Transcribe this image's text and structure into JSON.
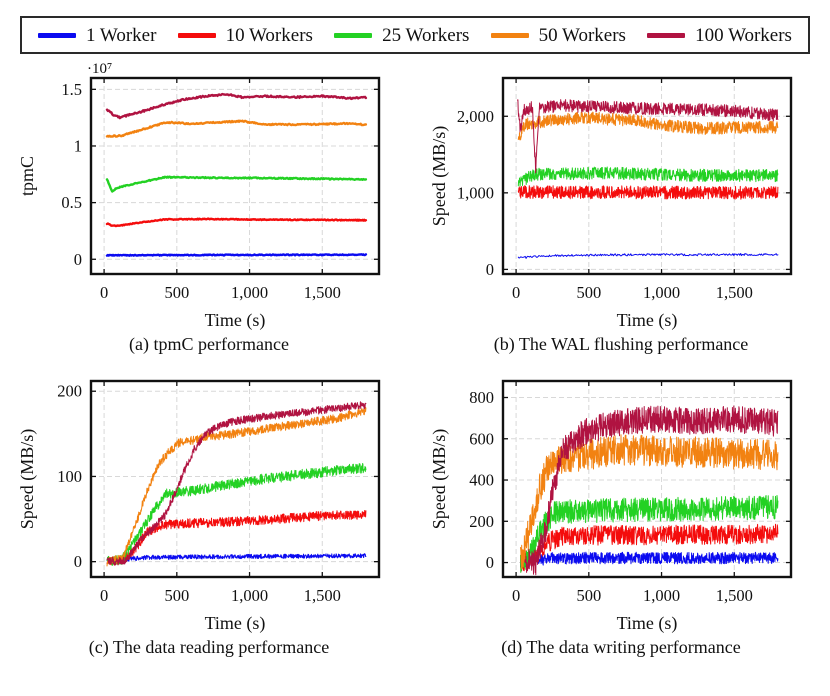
{
  "page": {
    "background": "#ffffff"
  },
  "legend": {
    "border_color": "#2a2a2a",
    "position": "top",
    "items": [
      {
        "label": "1 Worker",
        "color": "#0b0bf0"
      },
      {
        "label": "10 Workers",
        "color": "#f40c0c"
      },
      {
        "label": "25 Workers",
        "color": "#23d123"
      },
      {
        "label": "50 Workers",
        "color": "#f28211"
      },
      {
        "label": "100 Workers",
        "color": "#b01341"
      }
    ]
  },
  "style": {
    "grid_color": "#d8d8d8",
    "axis_color": "#111111",
    "tick_label_size": 16.5,
    "axis_label_size": 18
  },
  "chart_data": [
    {
      "id": "a",
      "type": "line",
      "caption": "(a) tpmC performance",
      "xlabel": "Time (s)",
      "ylabel": "tpmC",
      "y_scale_label": "·10⁷",
      "grid": true,
      "legend_position": "figure-top-shared",
      "xlim": [
        -90,
        1890
      ],
      "ylim": [
        -0.13,
        1.6
      ],
      "xticks": [
        0,
        500,
        1000,
        1500
      ],
      "xtick_labels": [
        "0",
        "500",
        "1,000",
        "1,500"
      ],
      "yticks": [
        0,
        0.5,
        1,
        1.5
      ],
      "ytick_labels": [
        "0",
        "0.5",
        "1",
        "1.5"
      ],
      "series": [
        {
          "name": "1 Worker",
          "color": "#0b0bf0",
          "width": 2.4,
          "noise": 0.004,
          "points": [
            [
              20,
              0.035
            ],
            [
              900,
              0.038
            ],
            [
              1800,
              0.04
            ]
          ]
        },
        {
          "name": "10 Workers",
          "color": "#f40c0c",
          "width": 2.4,
          "noise": 0.004,
          "points": [
            [
              20,
              0.315
            ],
            [
              60,
              0.295
            ],
            [
              120,
              0.3
            ],
            [
              250,
              0.325
            ],
            [
              420,
              0.352
            ],
            [
              700,
              0.355
            ],
            [
              1100,
              0.35
            ],
            [
              1800,
              0.345
            ]
          ]
        },
        {
          "name": "25 Workers",
          "color": "#23d123",
          "width": 2.4,
          "noise": 0.005,
          "points": [
            [
              20,
              0.705
            ],
            [
              55,
              0.6
            ],
            [
              90,
              0.63
            ],
            [
              200,
              0.665
            ],
            [
              420,
              0.725
            ],
            [
              700,
              0.72
            ],
            [
              1200,
              0.715
            ],
            [
              1800,
              0.705
            ]
          ]
        },
        {
          "name": "50 Workers",
          "color": "#f28211",
          "width": 2.4,
          "noise": 0.006,
          "points": [
            [
              20,
              1.085
            ],
            [
              120,
              1.09
            ],
            [
              300,
              1.16
            ],
            [
              430,
              1.21
            ],
            [
              600,
              1.195
            ],
            [
              800,
              1.21
            ],
            [
              950,
              1.22
            ],
            [
              1100,
              1.19
            ],
            [
              1400,
              1.19
            ],
            [
              1700,
              1.2
            ],
            [
              1800,
              1.185
            ]
          ]
        },
        {
          "name": "100 Workers",
          "color": "#b01341",
          "width": 2.4,
          "noise": 0.007,
          "points": [
            [
              20,
              1.32
            ],
            [
              70,
              1.27
            ],
            [
              110,
              1.25
            ],
            [
              160,
              1.27
            ],
            [
              250,
              1.3
            ],
            [
              400,
              1.36
            ],
            [
              550,
              1.41
            ],
            [
              700,
              1.44
            ],
            [
              850,
              1.455
            ],
            [
              950,
              1.43
            ],
            [
              1100,
              1.44
            ],
            [
              1300,
              1.43
            ],
            [
              1500,
              1.44
            ],
            [
              1700,
              1.42
            ],
            [
              1800,
              1.43
            ]
          ]
        }
      ]
    },
    {
      "id": "b",
      "type": "line",
      "caption": "(b) The WAL flushing performance",
      "xlabel": "Time (s)",
      "ylabel": "Speed (MB/s)",
      "grid": true,
      "legend_position": "figure-top-shared",
      "xlim": [
        -90,
        1890
      ],
      "ylim": [
        -60,
        2500
      ],
      "xticks": [
        0,
        500,
        1000,
        1500
      ],
      "xtick_labels": [
        "0",
        "500",
        "1,000",
        "1,500"
      ],
      "yticks": [
        0,
        1000,
        2000
      ],
      "ytick_labels": [
        "0",
        "1,000",
        "2,000"
      ],
      "series": [
        {
          "name": "1 Worker",
          "color": "#0b0bf0",
          "width": 1,
          "noise": 14,
          "points": [
            [
              15,
              150
            ],
            [
              200,
              175
            ],
            [
              600,
              190
            ],
            [
              1800,
              195
            ]
          ]
        },
        {
          "name": "10 Workers",
          "color": "#f40c0c",
          "width": 1,
          "noise": 85,
          "points": [
            [
              15,
              1010
            ],
            [
              900,
              1005
            ],
            [
              1800,
              1000
            ]
          ]
        },
        {
          "name": "25 Workers",
          "color": "#23d123",
          "width": 1,
          "noise": 80,
          "points": [
            [
              15,
              1130
            ],
            [
              120,
              1240
            ],
            [
              600,
              1260
            ],
            [
              1200,
              1230
            ],
            [
              1800,
              1225
            ]
          ]
        },
        {
          "name": "50 Workers",
          "color": "#f28211",
          "width": 1,
          "noise": 80,
          "points": [
            [
              15,
              1700
            ],
            [
              60,
              1900
            ],
            [
              200,
              1935
            ],
            [
              500,
              1980
            ],
            [
              800,
              1945
            ],
            [
              1100,
              1870
            ],
            [
              1300,
              1840
            ],
            [
              1600,
              1860
            ],
            [
              1800,
              1855
            ]
          ]
        },
        {
          "name": "100 Workers",
          "color": "#b01341",
          "width": 1,
          "noise": 80,
          "points": [
            [
              10,
              2200
            ],
            [
              30,
              1800
            ],
            [
              55,
              2100
            ],
            [
              80,
              2050
            ],
            [
              110,
              2150
            ],
            [
              135,
              1300
            ],
            [
              160,
              2100
            ],
            [
              300,
              2140
            ],
            [
              600,
              2120
            ],
            [
              900,
              2100
            ],
            [
              1200,
              2090
            ],
            [
              1500,
              2070
            ],
            [
              1800,
              2010
            ]
          ]
        }
      ]
    },
    {
      "id": "c",
      "type": "line",
      "caption": "(c) The data reading performance",
      "xlabel": "Time (s)",
      "ylabel": "Speed (MB/s)",
      "grid": true,
      "legend_position": "figure-top-shared",
      "xlim": [
        -90,
        1890
      ],
      "ylim": [
        -18,
        212
      ],
      "xticks": [
        0,
        500,
        1000,
        1500
      ],
      "xtick_labels": [
        "0",
        "500",
        "1,000",
        "1,500"
      ],
      "yticks": [
        0,
        100,
        200
      ],
      "ytick_labels": [
        "0",
        "100",
        "200"
      ],
      "series": [
        {
          "name": "1 Worker",
          "color": "#0b0bf0",
          "width": 1,
          "noise": 2.5,
          "points": [
            [
              20,
              0
            ],
            [
              100,
              2
            ],
            [
              300,
              5
            ],
            [
              900,
              6
            ],
            [
              1800,
              7
            ]
          ]
        },
        {
          "name": "10 Workers",
          "color": "#f40c0c",
          "width": 1,
          "noise": 5.5,
          "points": [
            [
              20,
              0
            ],
            [
              110,
              1
            ],
            [
              200,
              12
            ],
            [
              300,
              35
            ],
            [
              400,
              43
            ],
            [
              600,
              45
            ],
            [
              900,
              47
            ],
            [
              1200,
              50
            ],
            [
              1500,
              54
            ],
            [
              1800,
              55
            ]
          ]
        },
        {
          "name": "25 Workers",
          "color": "#23d123",
          "width": 1,
          "noise": 6,
          "points": [
            [
              20,
              0
            ],
            [
              120,
              2
            ],
            [
              250,
              35
            ],
            [
              350,
              62
            ],
            [
              430,
              80
            ],
            [
              550,
              82
            ],
            [
              700,
              86
            ],
            [
              900,
              92
            ],
            [
              1100,
              97
            ],
            [
              1300,
              101
            ],
            [
              1600,
              107
            ],
            [
              1800,
              110
            ]
          ]
        },
        {
          "name": "50 Workers",
          "color": "#f28211",
          "width": 1,
          "noise": 5,
          "points": [
            [
              20,
              0
            ],
            [
              130,
              4
            ],
            [
              220,
              45
            ],
            [
              300,
              85
            ],
            [
              380,
              115
            ],
            [
              450,
              130
            ],
            [
              520,
              140
            ],
            [
              600,
              142
            ],
            [
              700,
              147
            ],
            [
              800,
              148
            ],
            [
              1000,
              153
            ],
            [
              1200,
              158
            ],
            [
              1400,
              163
            ],
            [
              1600,
              168
            ],
            [
              1800,
              177
            ]
          ]
        },
        {
          "name": "100 Workers",
          "color": "#b01341",
          "width": 1,
          "noise": 4.5,
          "points": [
            [
              20,
              0
            ],
            [
              150,
              1
            ],
            [
              250,
              25
            ],
            [
              350,
              42
            ],
            [
              420,
              55
            ],
            [
              500,
              85
            ],
            [
              560,
              110
            ],
            [
              620,
              132
            ],
            [
              700,
              150
            ],
            [
              800,
              160
            ],
            [
              900,
              165
            ],
            [
              1100,
              170
            ],
            [
              1300,
              174
            ],
            [
              1500,
              178
            ],
            [
              1700,
              182
            ],
            [
              1800,
              184
            ]
          ]
        }
      ]
    },
    {
      "id": "d",
      "type": "line",
      "caption": "(d) The data writing performance",
      "xlabel": "Time (s)",
      "ylabel": "Speed (MB/s)",
      "grid": true,
      "legend_position": "figure-top-shared",
      "xlim": [
        -90,
        1890
      ],
      "ylim": [
        -70,
        880
      ],
      "xticks": [
        0,
        500,
        1000,
        1500
      ],
      "xtick_labels": [
        "0",
        "500",
        "1,000",
        "1,500"
      ],
      "yticks": [
        0,
        200,
        400,
        600,
        800
      ],
      "ytick_labels": [
        "0",
        "200",
        "400",
        "600",
        "800"
      ],
      "series": [
        {
          "name": "1 Worker",
          "color": "#0b0bf0",
          "width": 1,
          "noise": 28,
          "points": [
            [
              30,
              0
            ],
            [
              120,
              8
            ],
            [
              250,
              20
            ],
            [
              500,
              22
            ],
            [
              1800,
              22
            ]
          ]
        },
        {
          "name": "10 Workers",
          "color": "#f40c0c",
          "width": 1,
          "noise": 48,
          "points": [
            [
              30,
              0
            ],
            [
              110,
              20
            ],
            [
              200,
              90
            ],
            [
              300,
              125
            ],
            [
              500,
              132
            ],
            [
              1800,
              138
            ]
          ]
        },
        {
          "name": "25 Workers",
          "color": "#23d123",
          "width": 1,
          "noise": 58,
          "points": [
            [
              30,
              0
            ],
            [
              100,
              40
            ],
            [
              180,
              170
            ],
            [
              260,
              240
            ],
            [
              400,
              250
            ],
            [
              800,
              255
            ],
            [
              1800,
              268
            ]
          ]
        },
        {
          "name": "50 Workers",
          "color": "#f28211",
          "width": 1,
          "noise": 75,
          "points": [
            [
              30,
              0
            ],
            [
              90,
              150
            ],
            [
              150,
              330
            ],
            [
              220,
              470
            ],
            [
              300,
              495
            ],
            [
              450,
              520
            ],
            [
              700,
              545
            ],
            [
              1000,
              540
            ],
            [
              1400,
              530
            ],
            [
              1800,
              520
            ]
          ]
        },
        {
          "name": "100 Workers",
          "color": "#b01341",
          "width": 1,
          "noise": 65,
          "points": [
            [
              60,
              0
            ],
            [
              140,
              5
            ],
            [
              200,
              150
            ],
            [
              260,
              380
            ],
            [
              320,
              540
            ],
            [
              400,
              600
            ],
            [
              500,
              640
            ],
            [
              650,
              670
            ],
            [
              800,
              690
            ],
            [
              1000,
              695
            ],
            [
              1200,
              685
            ],
            [
              1500,
              695
            ],
            [
              1800,
              675
            ]
          ]
        }
      ]
    }
  ]
}
